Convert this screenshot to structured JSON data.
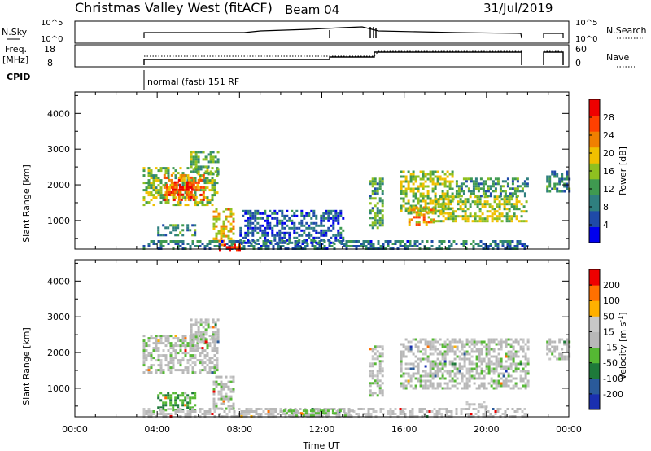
{
  "header": {
    "title": "Christmas Valley West (fitACF)",
    "beam": "Beam 04",
    "date": "31/Jul/2019"
  },
  "status_panels": {
    "nsky": {
      "label": "N.Sky",
      "ticks": [
        "10^5",
        "10^0"
      ]
    },
    "nsearch": {
      "label": "N.Search",
      "ticks": [
        "10^5",
        "10^0"
      ]
    },
    "freq": {
      "label_lines": [
        "Freq.",
        "[MHz]"
      ],
      "ticks": [
        "18",
        "8"
      ]
    },
    "nave": {
      "label": "Nave",
      "ticks": [
        "60",
        "0"
      ]
    },
    "cpid": {
      "label": "CPID",
      "mode_text": "normal (fast) 151 RF"
    }
  },
  "colors": {
    "power_scale": [
      "#0000ee",
      "#1f4aa8",
      "#2f7f7f",
      "#3f9a50",
      "#8fc020",
      "#f0c000",
      "#f08000",
      "#ff4000",
      "#ee0000"
    ],
    "velocity_scale": [
      "#1a2fb0",
      "#2a5a9a",
      "#1e7a3a",
      "#55b833",
      "#b8b8b8",
      "#c8c8c8",
      "#ffb000",
      "#ff7000",
      "#ee0000"
    ],
    "ground_scatter": "#a9a9a9"
  },
  "chart_data": [
    {
      "type": "heatmap",
      "name": "power",
      "xlabel": "",
      "ylabel": "Slant Range [km]",
      "xlim": [
        0,
        24
      ],
      "ylim": [
        200,
        4600
      ],
      "yticks": [
        1000,
        2000,
        3000,
        4000
      ],
      "colorbar": {
        "label": "Power [dB]",
        "ticks": [
          "28",
          "24",
          "20",
          "16",
          "12",
          "8",
          "4"
        ],
        "range": [
          0,
          30
        ]
      },
      "regions": [
        {
          "t": [
            3.3,
            6.9
          ],
          "r": [
            1450,
            2500
          ],
          "v": 14
        },
        {
          "t": [
            4.3,
            6.2
          ],
          "r": [
            1550,
            2300
          ],
          "v": 23
        },
        {
          "t": [
            4.7,
            5.7
          ],
          "r": [
            1700,
            2100
          ],
          "v": 27
        },
        {
          "t": [
            5.6,
            7.0
          ],
          "r": [
            2300,
            2950
          ],
          "v": 12
        },
        {
          "t": [
            4.0,
            5.8
          ],
          "r": [
            600,
            900
          ],
          "v": 10
        },
        {
          "t": [
            6.7,
            7.7
          ],
          "r": [
            400,
            1350
          ],
          "v": 19
        },
        {
          "t": [
            3.3,
            22.0
          ],
          "r": [
            200,
            450
          ],
          "v": 8
        },
        {
          "t": [
            7.0,
            8.0
          ],
          "r": [
            200,
            350
          ],
          "v": 26
        },
        {
          "t": [
            14.3,
            15.0
          ],
          "r": [
            800,
            2200
          ],
          "v": 11
        },
        {
          "t": [
            15.8,
            18.3
          ],
          "r": [
            1200,
            2400
          ],
          "v": 15
        },
        {
          "t": [
            16.2,
            17.5
          ],
          "r": [
            900,
            1400
          ],
          "v": 20
        },
        {
          "t": [
            17.5,
            22.0
          ],
          "r": [
            1000,
            1700
          ],
          "v": 15
        },
        {
          "t": [
            18.5,
            22.0
          ],
          "r": [
            1700,
            2200
          ],
          "v": 10
        },
        {
          "t": [
            22.9,
            24.0
          ],
          "r": [
            1800,
            2400
          ],
          "v": 9
        },
        {
          "t": [
            8.0,
            13.0
          ],
          "r": [
            400,
            1300
          ],
          "v": 6
        }
      ]
    },
    {
      "type": "heatmap",
      "name": "velocity",
      "xlabel": "Time UT",
      "ylabel": "Slant Range [km]",
      "xlim": [
        0,
        24
      ],
      "ylim": [
        200,
        4600
      ],
      "xticks": [
        "00:00",
        "04:00",
        "08:00",
        "12:00",
        "16:00",
        "20:00",
        "00:00"
      ],
      "yticks": [
        1000,
        2000,
        3000,
        4000
      ],
      "colorbar": {
        "label": "Velocity [m s",
        "label_sup": "-1",
        "label_end": "]",
        "ticks": [
          "200",
          "100",
          "50",
          "15",
          "-15",
          "-50",
          "-100",
          "-200"
        ],
        "range": [
          -250,
          250
        ]
      },
      "regions": [
        {
          "t": [
            3.3,
            6.9
          ],
          "r": [
            1450,
            2500
          ],
          "v": 0
        },
        {
          "t": [
            5.6,
            7.0
          ],
          "r": [
            2300,
            2950
          ],
          "v": 0
        },
        {
          "t": [
            4.0,
            5.8
          ],
          "r": [
            400,
            900
          ],
          "v": -80
        },
        {
          "t": [
            6.7,
            7.7
          ],
          "r": [
            400,
            1350
          ],
          "v": 0
        },
        {
          "t": [
            3.3,
            22.0
          ],
          "r": [
            200,
            450
          ],
          "v": 30
        },
        {
          "t": [
            10.0,
            13.5
          ],
          "r": [
            200,
            400
          ],
          "v": -35
        },
        {
          "t": [
            14.3,
            15.0
          ],
          "r": [
            800,
            2200
          ],
          "v": 0
        },
        {
          "t": [
            15.8,
            22.0
          ],
          "r": [
            1000,
            2400
          ],
          "v": 0
        },
        {
          "t": [
            19.0,
            20.0
          ],
          "r": [
            500,
            650
          ],
          "v": 25
        },
        {
          "t": [
            22.9,
            24.0
          ],
          "r": [
            1800,
            2400
          ],
          "v": 0
        }
      ]
    }
  ]
}
